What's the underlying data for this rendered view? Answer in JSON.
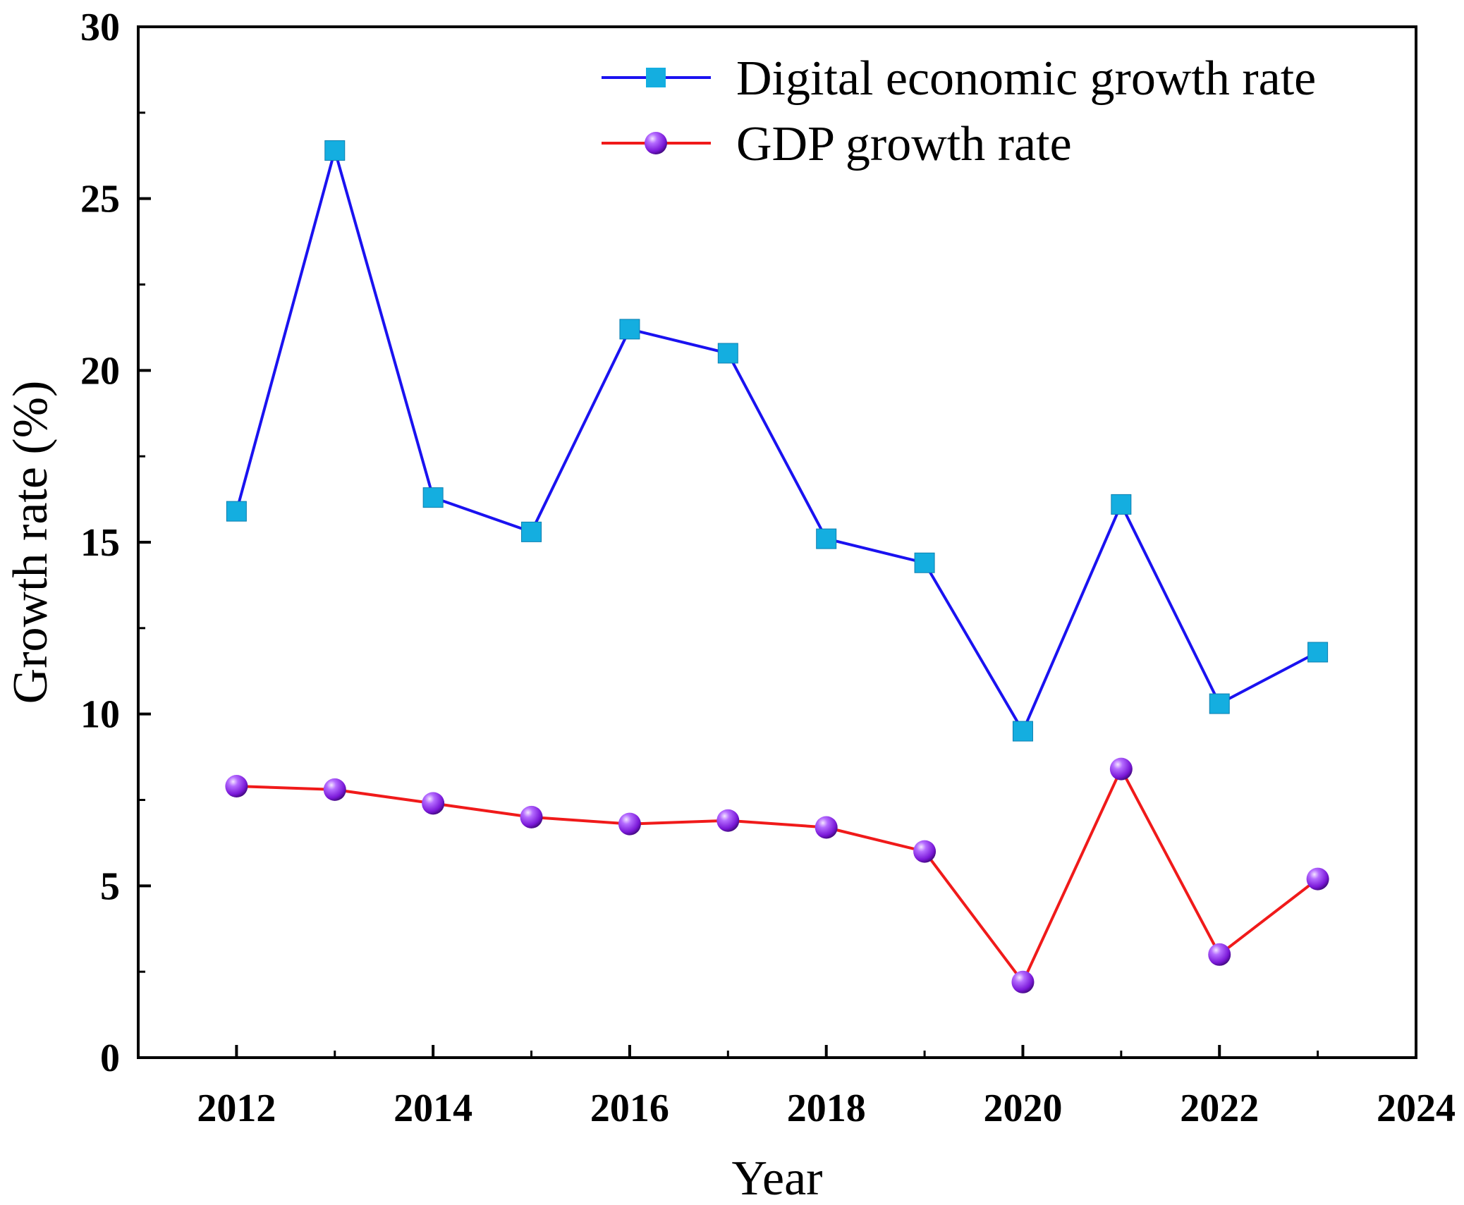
{
  "chart_data": {
    "type": "line",
    "title": "",
    "xlabel": "Year",
    "ylabel": "Growth rate (%)",
    "xlim": [
      2011,
      2024
    ],
    "ylim": [
      0,
      30
    ],
    "xticks": [
      2012,
      2014,
      2016,
      2018,
      2020,
      2022,
      2024
    ],
    "yticks": [
      0,
      5,
      10,
      15,
      20,
      25,
      30
    ],
    "x": [
      2012,
      2013,
      2014,
      2015,
      2016,
      2017,
      2018,
      2019,
      2020,
      2021,
      2022,
      2023
    ],
    "legend_position": "top-right",
    "grid": false,
    "series": [
      {
        "name": "Digital economic growth rate",
        "line_color": "#1a12f0",
        "marker": "square",
        "marker_color": "#14aee0",
        "values": [
          15.9,
          26.4,
          16.3,
          15.3,
          21.2,
          20.5,
          15.1,
          14.4,
          9.5,
          16.1,
          10.3,
          11.8
        ]
      },
      {
        "name": "GDP growth rate",
        "line_color": "#f01a1a",
        "marker": "sphere",
        "marker_color": "#8a22e6",
        "values": [
          7.9,
          7.8,
          7.4,
          7.0,
          6.8,
          6.9,
          6.7,
          6.0,
          2.2,
          8.4,
          3.0,
          5.2
        ]
      }
    ]
  }
}
